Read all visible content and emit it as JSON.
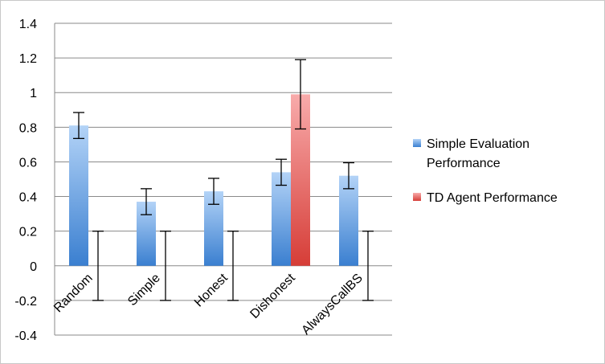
{
  "chart_data": {
    "type": "bar",
    "title": "",
    "xlabel": "",
    "ylabel": "",
    "ylim": [
      -0.4,
      1.4
    ],
    "yticks": [
      -0.4,
      -0.2,
      0,
      0.2,
      0.4,
      0.6,
      0.8,
      1,
      1.2,
      1.4
    ],
    "ytick_labels": [
      "-0.4",
      "-0.2",
      "0",
      "0.2",
      "0.4",
      "0.6",
      "0.8",
      "1",
      "1.2",
      "1.4"
    ],
    "grid": true,
    "legend_position": "right",
    "categories": [
      "Random",
      "Simple",
      "Honest",
      "Dishonest",
      "AlwaysCallBS"
    ],
    "series": [
      {
        "name": "Simple Evaluation Performance",
        "values": [
          0.81,
          0.37,
          0.43,
          0.54,
          0.52
        ],
        "error": [
          0.075,
          0.075,
          0.075,
          0.075,
          0.075
        ],
        "color_light": "#a9cdf6",
        "color_dark": "#3a7fd0"
      },
      {
        "name": "TD Agent Performance",
        "values": [
          0,
          0,
          0,
          0.99,
          0
        ],
        "error": [
          0.2,
          0.2,
          0.2,
          0.2,
          0.2
        ],
        "color_light": "#f7a3a3",
        "color_dark": "#d8403a"
      }
    ]
  }
}
